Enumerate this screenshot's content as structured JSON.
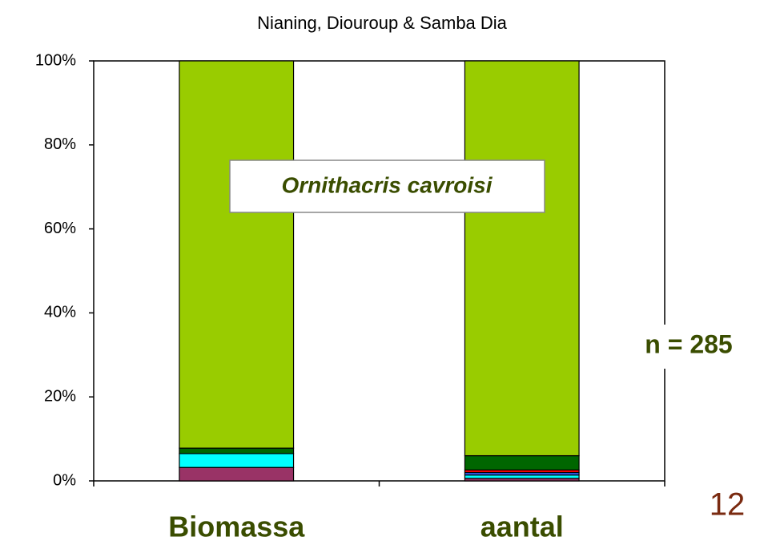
{
  "chart_data": {
    "type": "stacked_bar",
    "title": "Nianing, Diouroup & Samba Dia",
    "categories": [
      "Biomassa",
      "aantal"
    ],
    "series": [
      {
        "color": "#993366",
        "values": [
          3.2,
          0.6
        ]
      },
      {
        "color": "#00ffff",
        "values": [
          3.3,
          0.8
        ]
      },
      {
        "color": "#3366ff",
        "values": [
          0,
          0.6
        ]
      },
      {
        "color": "#ff0000",
        "values": [
          0,
          0.6
        ]
      },
      {
        "color": "#006600",
        "values": [
          1.3,
          3.4
        ]
      },
      {
        "color": "#99cc00",
        "values": [
          92.2,
          94.0
        ]
      }
    ],
    "ylim": [
      0,
      100
    ],
    "yticks": [
      {
        "value": 0,
        "label": "0%"
      },
      {
        "value": 20,
        "label": "20%"
      },
      {
        "value": 40,
        "label": "40%"
      },
      {
        "value": 60,
        "label": "60%"
      },
      {
        "value": 80,
        "label": "80%"
      },
      {
        "value": 100,
        "label": "100%"
      }
    ],
    "annotations": [
      "Ornithacris cavroisi",
      "n = 285"
    ],
    "page_number": "12"
  }
}
